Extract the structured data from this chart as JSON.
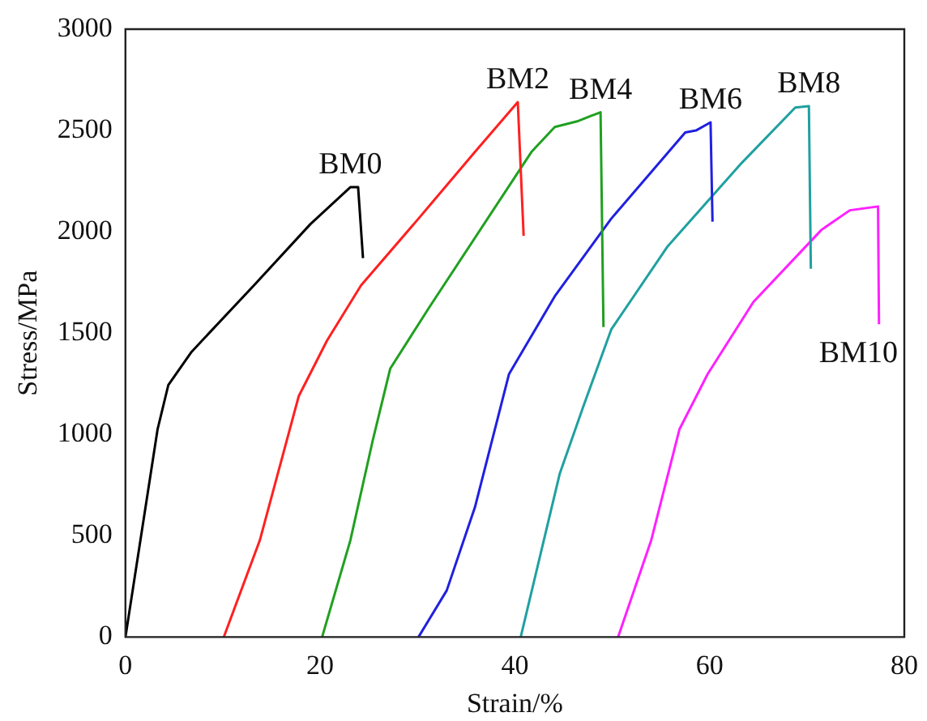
{
  "chart_data": {
    "type": "line",
    "xlabel": "Strain/%",
    "ylabel": "Stress/MPa",
    "xlim": [
      0,
      80
    ],
    "xticks": [
      0,
      20,
      40,
      60,
      80
    ],
    "ylim": [
      0,
      3000
    ],
    "yticks": [
      0,
      500,
      1000,
      1500,
      2000,
      2500,
      3000
    ],
    "grid": false,
    "legend": false,
    "marker": "none",
    "line_style": "solid",
    "series": [
      {
        "name": "BM0",
        "color": "#000000",
        "x": [
          0,
          3.3,
          4.4,
          6.8,
          13.2,
          19,
          23.1,
          23.9,
          24.4
        ],
        "values": [
          0,
          1025,
          1243,
          1408,
          1736,
          2038,
          2220,
          2220,
          1870
        ]
      },
      {
        "name": "BM2",
        "color": "#ff2020",
        "x": [
          10.1,
          13.8,
          17.8,
          20.7,
          24.2,
          30.1,
          35.9,
          40.3,
          40.9
        ],
        "values": [
          0,
          477,
          1189,
          1463,
          1736,
          2065,
          2394,
          2640,
          1980
        ]
      },
      {
        "name": "BM4",
        "color": "#20a020",
        "x": [
          20.2,
          23.1,
          25.4,
          27.2,
          31.2,
          41.7,
          44.1,
          46.4,
          47.8,
          48.8,
          49.1
        ],
        "values": [
          0,
          477,
          970,
          1325,
          1627,
          2394,
          2517,
          2545,
          2572,
          2590,
          1530
        ]
      },
      {
        "name": "BM6",
        "color": "#2020e0",
        "x": [
          30.1,
          33,
          35.9,
          39.4,
          44.1,
          49.9,
          57.5,
          58.6,
          60.1,
          60.3
        ],
        "values": [
          0,
          230,
          641,
          1298,
          1682,
          2065,
          2490,
          2500,
          2540,
          2050
        ]
      },
      {
        "name": "BM8",
        "color": "#20a0a0",
        "x": [
          40.6,
          44.6,
          47,
          49.9,
          55.7,
          63.3,
          68.8,
          70.2,
          70.4
        ],
        "values": [
          0,
          805,
          1134,
          1518,
          1929,
          2340,
          2613,
          2620,
          1818
        ]
      },
      {
        "name": "BM10",
        "color": "#ff20ff",
        "x": [
          50.6,
          54,
          56.9,
          59.8,
          64.5,
          71.5,
          74.4,
          77.3,
          77.4
        ],
        "values": [
          0,
          477,
          1025,
          1298,
          1654,
          2010,
          2106,
          2125,
          1544
        ]
      }
    ]
  }
}
